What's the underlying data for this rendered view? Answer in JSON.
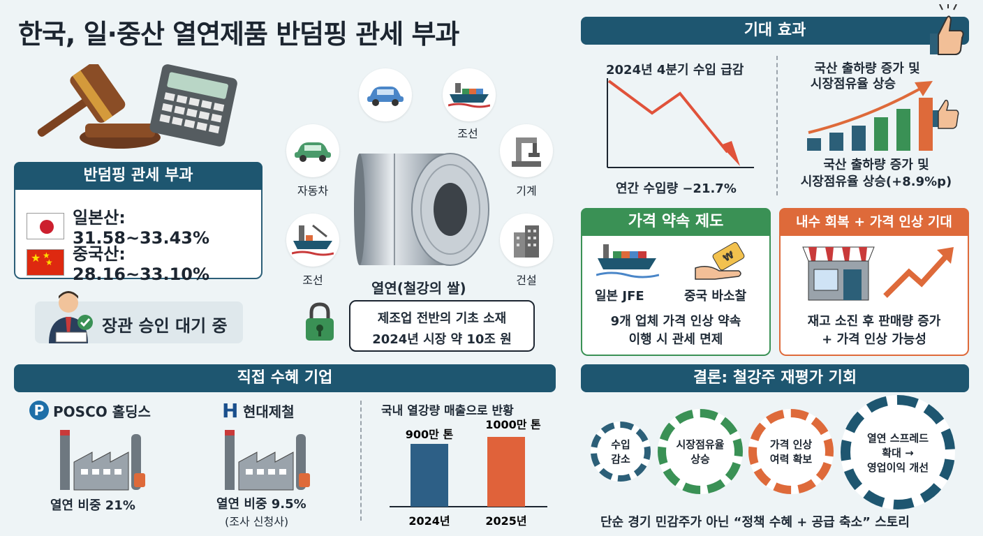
{
  "title": "한국, 일·중산 열연제품 반덤핑 관세 부과",
  "duty": {
    "header": "반덤핑 관세 부과",
    "japan": "일본산: 31.58~33.43%",
    "china": "중국산: 28.16~33.10%"
  },
  "approval": "장관 승인 대기 중",
  "center": {
    "coil_label": "열연(철강의 쌀)",
    "uses": [
      "조선",
      "자동차",
      "기계",
      "조선",
      "건설"
    ],
    "info_line1": "제조업 전반의 기초 소재",
    "info_line2": "2024년 시장 약 10조 원"
  },
  "effects": {
    "header": "기대 효과",
    "left_title": "2024년 4분기 수입 급감",
    "left_caption": "연간 수입량 −21.7%",
    "right_title_1": "국산 출하량 증가 및",
    "right_title_2": "시장점유율 상승",
    "right_caption_1": "국산 출하량 증가 및",
    "right_caption_2": "시장점유율 상승(+8.9%p)"
  },
  "price_promise": {
    "header": "가격 약속 제도",
    "item1": "일본 JFE",
    "item2": "중국 바소찰",
    "line1": "9개 업체 가격 인상 약속",
    "line2": "이행 시 관세 면제"
  },
  "recovery": {
    "header": "내수 회복 + 가격 인상 기대",
    "line1": "재고 소진 후 판매량 증가",
    "line2": "+ 가격 인상 가능성"
  },
  "beneficiaries": {
    "header": "직접 수혜 기업",
    "posco": "POSCO 홀딩스",
    "posco_share": "열연 비중 21%",
    "hyundai": "현대제철",
    "hyundai_share": "열연 비중 9.5%",
    "hyundai_note": "(조사 신청사)",
    "chart_title": "국내 열강량 매출으로 반황"
  },
  "chart_data": {
    "type": "bar",
    "categories": [
      "2024년",
      "2025년"
    ],
    "values": [
      900,
      1000
    ],
    "data_labels": [
      "900만 톤",
      "1000만 톤"
    ],
    "colors": [
      "#2d5f86",
      "#e0623a"
    ],
    "title": "국내 열강량 매출으로 반황"
  },
  "conclusion": {
    "header": "결론: 철강주 재평가 기회",
    "gear1": "수입\n감소",
    "gear2": "시장점유율\n상승",
    "gear3": "가격 인상\n여력 확보",
    "gear4": "열연 스프레드\n확대 →\n영업이익 개선",
    "footer": "단순 경기 민감주가 아닌 “정책 수혜 + 공급 축소” 스토리"
  },
  "colors": {
    "navy": "#1e5670",
    "green": "#3a9155",
    "orange": "#de6a3a",
    "red_line": "#e0523a"
  }
}
